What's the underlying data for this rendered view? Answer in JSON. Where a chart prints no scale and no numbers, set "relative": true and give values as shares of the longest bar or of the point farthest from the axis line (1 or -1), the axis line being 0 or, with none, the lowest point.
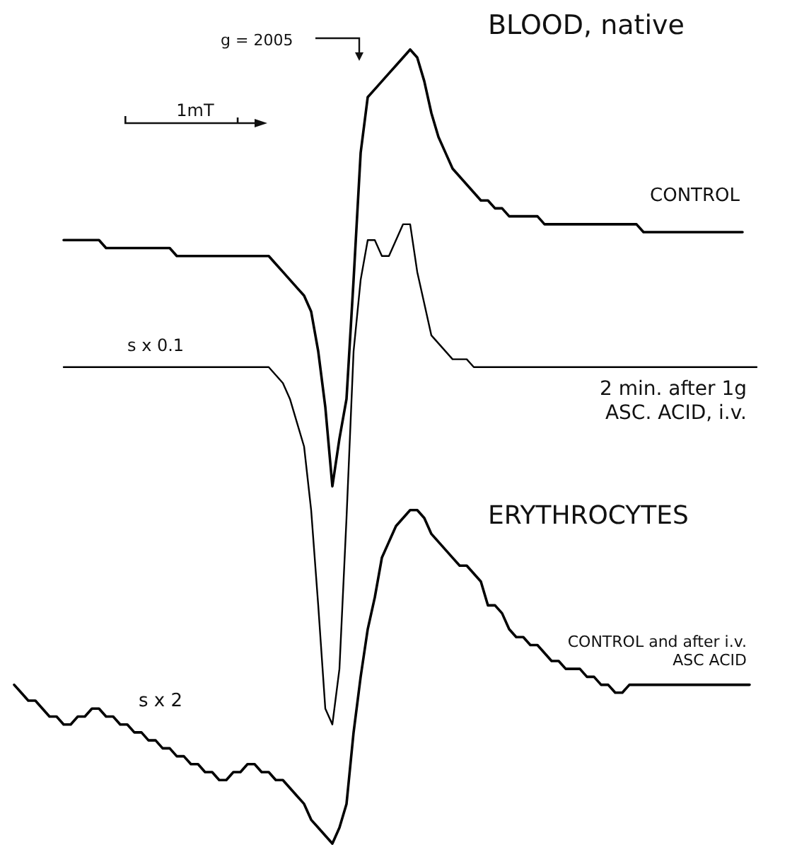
{
  "chart_data": {
    "type": "line",
    "relative": true,
    "categories": [
      null,
      null,
      null,
      null,
      null,
      null,
      null,
      null,
      null,
      null,
      null,
      null,
      null,
      null,
      null,
      null,
      null,
      null,
      null,
      null,
      null,
      null,
      null,
      null,
      null,
      null,
      null,
      null,
      null,
      null,
      null,
      null,
      null,
      null,
      null,
      null,
      null,
      null,
      null,
      null,
      null,
      null,
      null,
      null,
      null,
      null,
      null,
      null,
      null,
      null,
      null,
      null,
      null,
      null,
      null,
      null,
      null,
      null,
      null,
      null,
      null,
      null,
      null,
      null,
      null,
      null,
      null,
      null,
      null,
      null,
      null,
      null,
      null,
      null,
      null,
      null,
      null,
      null,
      null,
      null,
      null,
      null,
      null,
      null,
      null,
      null,
      null,
      null,
      null,
      null,
      null,
      null,
      null,
      null,
      null,
      null,
      null,
      null,
      null,
      null,
      null,
      null,
      null,
      null,
      null,
      null
    ],
    "series": [
      {
        "name": "CONTROL",
        "color": "#000000",
        "values": [
          null,
          null,
          null,
          null,
          null,
          null,
          null,
          0.76,
          0.76,
          0.76,
          0.76,
          0.76,
          0.76,
          0.75,
          0.75,
          0.75,
          0.75,
          0.75,
          0.75,
          0.75,
          0.75,
          0.75,
          0.75,
          0.74,
          0.74,
          0.74,
          0.74,
          0.74,
          0.74,
          0.74,
          0.74,
          0.74,
          0.74,
          0.74,
          0.74,
          0.74,
          0.74,
          0.73,
          0.72,
          0.71,
          0.7,
          0.69,
          0.67,
          0.62,
          0.55,
          0.45,
          0.51,
          0.56,
          0.71,
          0.87,
          0.94,
          0.95,
          0.96,
          0.97,
          0.98,
          0.99,
          1,
          0.99,
          0.96,
          0.92,
          0.89,
          0.87,
          0.85,
          0.84,
          0.83,
          0.82,
          0.81,
          0.81,
          0.8,
          0.8,
          0.79,
          0.79,
          0.79,
          0.79,
          0.79,
          0.78,
          0.78,
          0.78,
          0.78,
          0.78,
          0.78,
          0.78,
          0.78,
          0.78,
          0.78,
          0.78,
          0.78,
          0.78,
          0.78,
          0.77,
          0.77,
          0.77,
          0.77,
          0.77,
          0.77,
          0.77,
          0.77,
          0.77,
          0.77,
          0.77,
          0.77,
          0.77,
          0.77,
          0.77,
          null,
          null
        ]
      },
      {
        "name": "2 min. after 1g ASC. ACID, i.v.",
        "color": "#000000",
        "values": [
          null,
          null,
          null,
          null,
          null,
          null,
          null,
          0.6,
          0.6,
          0.6,
          0.6,
          0.6,
          0.6,
          0.6,
          0.6,
          0.6,
          0.6,
          0.6,
          0.6,
          0.6,
          0.6,
          0.6,
          0.6,
          0.6,
          0.6,
          0.6,
          0.6,
          0.6,
          0.6,
          0.6,
          0.6,
          0.6,
          0.6,
          0.6,
          0.6,
          0.6,
          0.6,
          0.59,
          0.58,
          0.56,
          0.53,
          0.5,
          0.42,
          0.3,
          0.17,
          0.15,
          0.22,
          0.41,
          0.62,
          0.71,
          0.76,
          0.76,
          0.74,
          0.74,
          0.76,
          0.78,
          0.78,
          0.72,
          0.68,
          0.64,
          0.63,
          0.62,
          0.61,
          0.61,
          0.61,
          0.6,
          0.6,
          0.6,
          0.6,
          0.6,
          0.6,
          0.6,
          0.6,
          0.6,
          0.6,
          0.6,
          0.6,
          0.6,
          0.6,
          0.6,
          0.6,
          0.6,
          0.6,
          0.6,
          0.6,
          0.6,
          0.6,
          0.6,
          0.6,
          0.6,
          0.6,
          0.6,
          0.6,
          0.6,
          0.6,
          0.6,
          0.6,
          0.6,
          0.6,
          0.6,
          0.6,
          0.6,
          0.6,
          0.6,
          0.6,
          0.6
        ]
      },
      {
        "name": "CONTROL and after i.v. ASC ACID",
        "color": "#000000",
        "values": [
          0.2,
          0.19,
          0.18,
          0.18,
          0.17,
          0.16,
          0.16,
          0.15,
          0.15,
          0.16,
          0.16,
          0.17,
          0.17,
          0.16,
          0.16,
          0.15,
          0.15,
          0.14,
          0.14,
          0.13,
          0.13,
          0.12,
          0.12,
          0.11,
          0.11,
          0.1,
          0.1,
          0.09,
          0.09,
          0.08,
          0.08,
          0.09,
          0.09,
          0.1,
          0.1,
          0.09,
          0.09,
          0.08,
          0.08,
          0.07,
          0.06,
          0.05,
          0.03,
          0.02,
          0.01,
          0,
          0.02,
          0.05,
          0.14,
          0.21,
          0.27,
          0.31,
          0.36,
          0.38,
          0.4,
          0.41,
          0.42,
          0.42,
          0.41,
          0.39,
          0.38,
          0.37,
          0.36,
          0.35,
          0.35,
          0.34,
          0.33,
          0.3,
          0.3,
          0.29,
          0.27,
          0.26,
          0.26,
          0.25,
          0.25,
          0.24,
          0.23,
          0.23,
          0.22,
          0.22,
          0.22,
          0.21,
          0.21,
          0.2,
          0.2,
          0.19,
          0.19,
          0.2,
          0.2,
          0.2,
          0.2,
          0.2,
          0.2,
          0.2,
          0.2,
          0.2,
          0.2,
          0.2,
          0.2,
          0.2,
          0.2,
          0.2,
          0.2,
          0.2,
          0.2,
          null
        ]
      }
    ],
    "annotations": [
      "BLOOD, native",
      "ERYTHROCYTES",
      "s x 0.1",
      "s x 2",
      "g = 2005",
      "1mT"
    ]
  }
}
